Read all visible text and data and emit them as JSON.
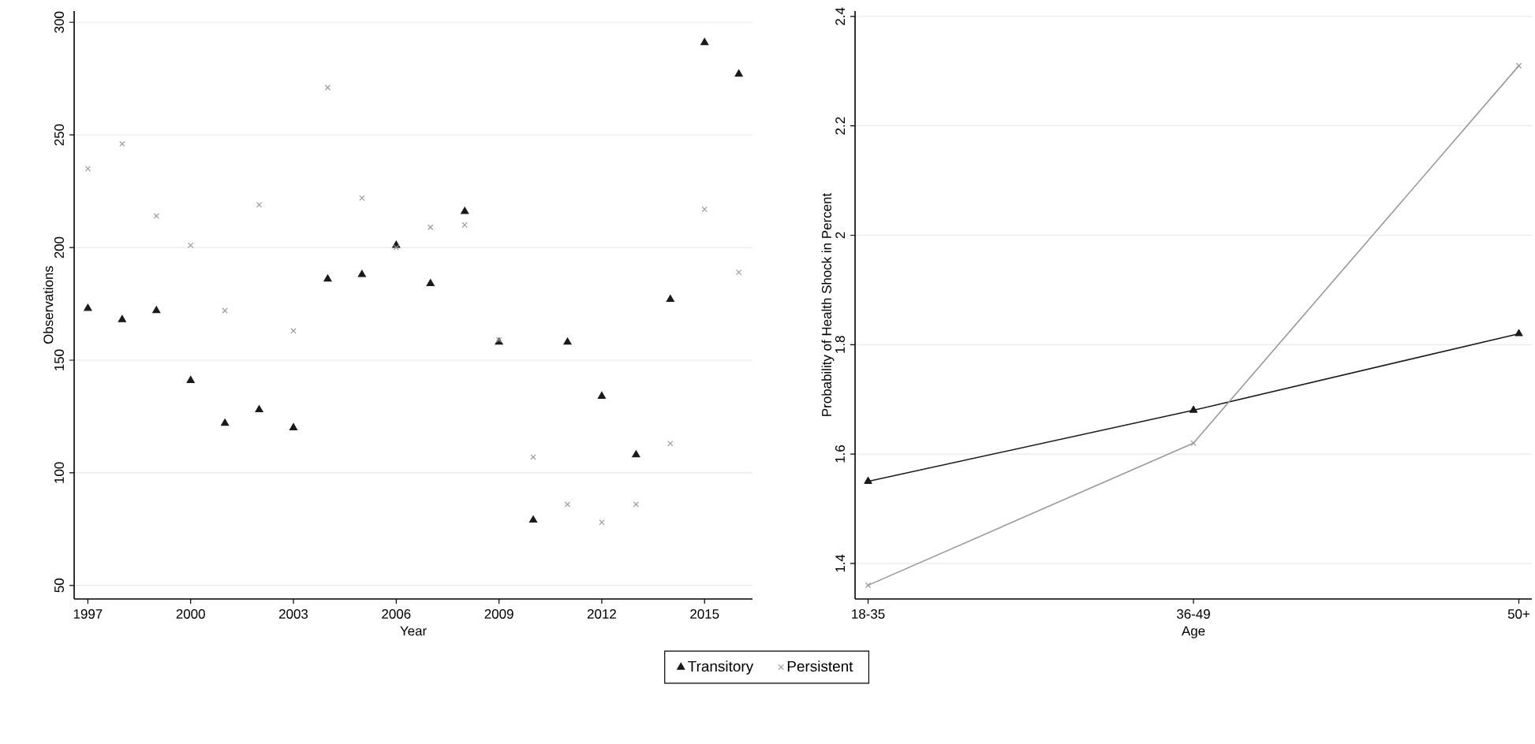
{
  "chart_data": [
    {
      "type": "scatter",
      "xlabel": "Year",
      "ylabel": "Observations",
      "x": [
        1997,
        1998,
        1999,
        2000,
        2001,
        2002,
        2003,
        2004,
        2005,
        2006,
        2007,
        2008,
        2009,
        2010,
        2011,
        2012,
        2013,
        2014,
        2015,
        2016
      ],
      "series": [
        {
          "name": "Transitory",
          "color": "#1a1a1a",
          "marker": "triangle",
          "values": [
            173,
            168,
            172,
            141,
            122,
            128,
            120,
            186,
            188,
            201,
            184,
            216,
            158,
            79,
            158,
            134,
            108,
            177,
            291,
            277
          ]
        },
        {
          "name": "Persistent",
          "color": "#999999",
          "marker": "cross",
          "values": [
            235,
            246,
            214,
            201,
            172,
            219,
            163,
            271,
            222,
            200,
            209,
            210,
            159,
            107,
            86,
            78,
            86,
            113,
            217,
            189
          ]
        }
      ],
      "xlim": [
        1996.6,
        2016.4
      ],
      "ylim": [
        44,
        305
      ],
      "xticks": [
        1997,
        2000,
        2003,
        2006,
        2009,
        2012,
        2015
      ],
      "yticks": [
        50,
        100,
        150,
        200,
        250,
        300
      ],
      "grid": "y",
      "legend": "bottom"
    },
    {
      "type": "line",
      "xlabel": "Age",
      "ylabel": "Probability of Health Shock in Percent",
      "categories": [
        "18-35",
        "36-49",
        "50+"
      ],
      "series": [
        {
          "color": "#1a1a1a",
          "marker": "triangle",
          "values": [
            1.55,
            1.68,
            1.82
          ]
        },
        {
          "color": "#999999",
          "marker": "cross",
          "values": [
            1.36,
            1.62,
            2.31
          ]
        }
      ],
      "ylim": [
        1.335,
        2.41
      ],
      "yticks": [
        1.4,
        1.6,
        1.8,
        2,
        2.2,
        2.4
      ],
      "grid": "y"
    }
  ]
}
